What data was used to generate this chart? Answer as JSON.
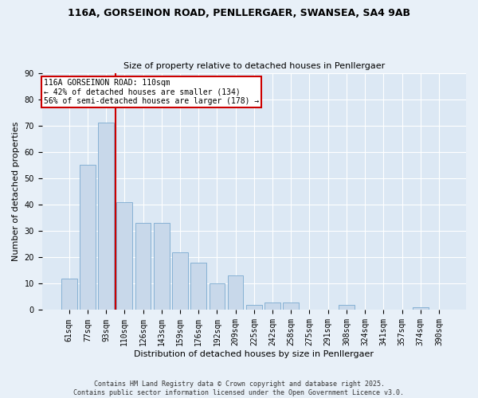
{
  "title1": "116A, GORSEINON ROAD, PENLLERGAER, SWANSEA, SA4 9AB",
  "title2": "Size of property relative to detached houses in Penllergaer",
  "xlabel": "Distribution of detached houses by size in Penllergaer",
  "ylabel": "Number of detached properties",
  "categories": [
    "61sqm",
    "77sqm",
    "93sqm",
    "110sqm",
    "126sqm",
    "143sqm",
    "159sqm",
    "176sqm",
    "192sqm",
    "209sqm",
    "225sqm",
    "242sqm",
    "258sqm",
    "275sqm",
    "291sqm",
    "308sqm",
    "324sqm",
    "341sqm",
    "357sqm",
    "374sqm",
    "390sqm"
  ],
  "values": [
    12,
    55,
    71,
    41,
    33,
    33,
    22,
    18,
    10,
    13,
    2,
    3,
    3,
    0,
    0,
    2,
    0,
    0,
    0,
    1,
    0
  ],
  "bar_color": "#c8d8ea",
  "bar_edge_color": "#7aaad0",
  "redline_index": 3,
  "annotation_title": "116A GORSEINON ROAD: 110sqm",
  "annotation_line1": "← 42% of detached houses are smaller (134)",
  "annotation_line2": "56% of semi-detached houses are larger (178) →",
  "annotation_box_color": "#ffffff",
  "annotation_box_edge": "#cc0000",
  "redline_color": "#cc0000",
  "ylim": [
    0,
    90
  ],
  "yticks": [
    0,
    10,
    20,
    30,
    40,
    50,
    60,
    70,
    80,
    90
  ],
  "bg_color": "#e8f0f8",
  "plot_bg_color": "#dce8f4",
  "footer": "Contains HM Land Registry data © Crown copyright and database right 2025.\nContains public sector information licensed under the Open Government Licence v3.0.",
  "title1_fontsize": 9,
  "title2_fontsize": 8,
  "xlabel_fontsize": 8,
  "ylabel_fontsize": 8,
  "tick_fontsize": 7,
  "footer_fontsize": 6,
  "annot_fontsize": 7
}
